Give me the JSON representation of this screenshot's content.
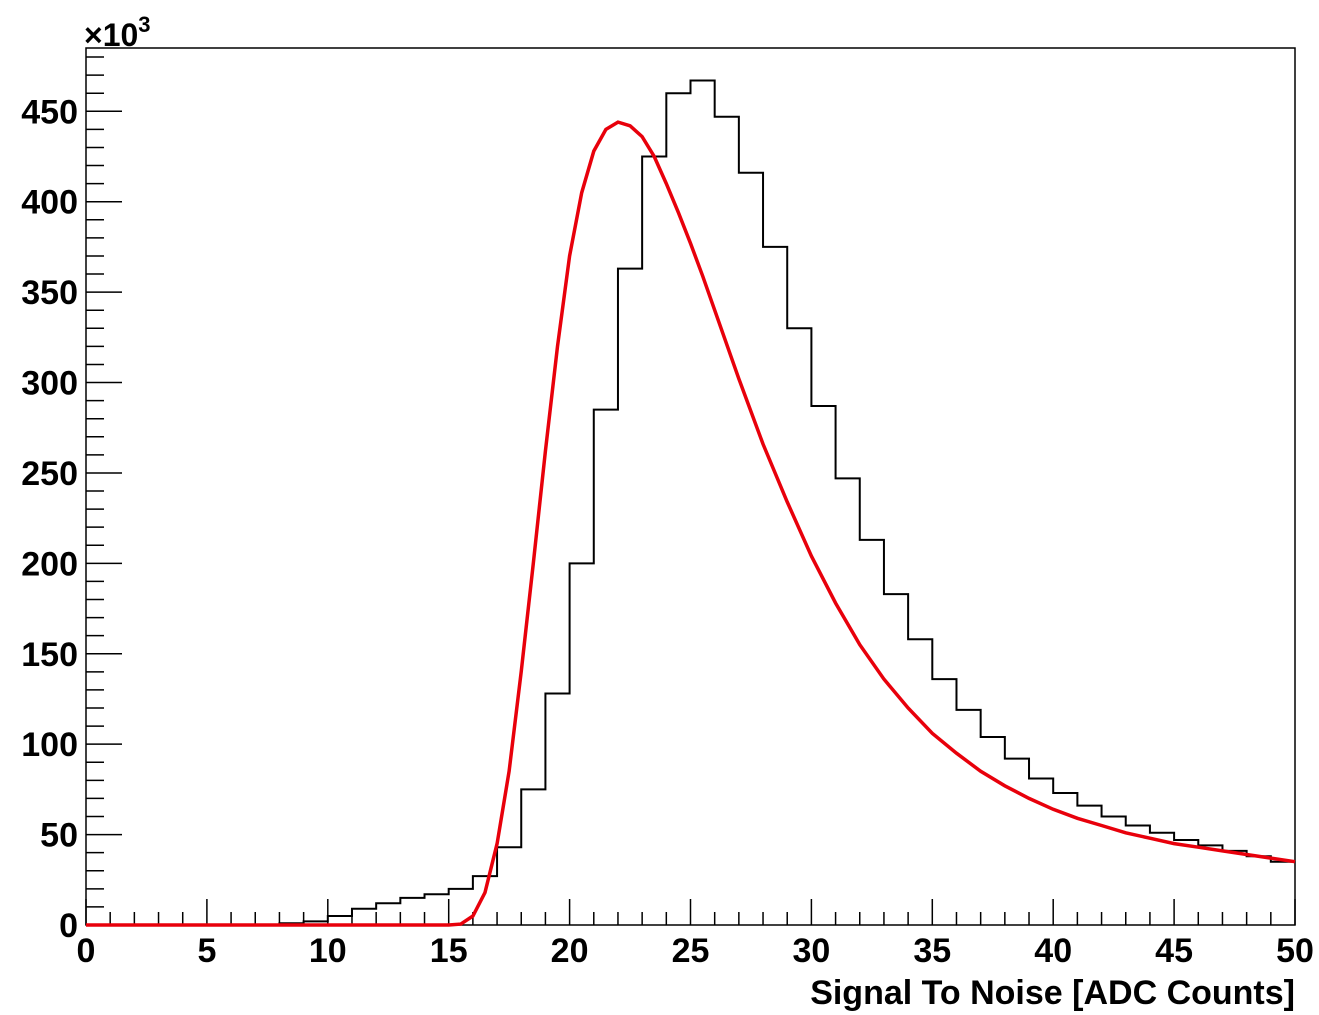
{
  "chart_data": {
    "type": "line",
    "xlabel": "Signal To Noise [ADC Counts]",
    "ylabel": "",
    "xlim": [
      0,
      50
    ],
    "ylim": [
      0,
      485
    ],
    "y_multiplier_label": {
      "prefix": "×10",
      "exponent": "3"
    },
    "x_ticks": [
      "0",
      "5",
      "10",
      "15",
      "20",
      "25",
      "30",
      "35",
      "40",
      "45",
      "50"
    ],
    "y_ticks": [
      "0",
      "50",
      "100",
      "150",
      "200",
      "250",
      "300",
      "350",
      "400",
      "450"
    ],
    "grid": false,
    "colors": {
      "histogram": "#000000",
      "fit": "#e8000b"
    },
    "series": [
      {
        "kind": "histogram",
        "bin_width": 1,
        "x": [
          0,
          1,
          2,
          3,
          4,
          5,
          6,
          7,
          8,
          9,
          10,
          11,
          12,
          13,
          14,
          15,
          16,
          17,
          18,
          19,
          20,
          21,
          22,
          23,
          24,
          25,
          26,
          27,
          28,
          29,
          30,
          31,
          32,
          33,
          34,
          35,
          36,
          37,
          38,
          39,
          40,
          41,
          42,
          43,
          44,
          45,
          46,
          47,
          48,
          49
        ],
        "values": [
          0,
          0,
          0,
          0,
          0,
          0,
          0,
          0,
          1,
          2,
          5,
          9,
          12,
          15,
          17,
          20,
          27,
          43,
          75,
          128,
          200,
          285,
          363,
          425,
          460,
          467,
          447,
          416,
          375,
          330,
          287,
          247,
          213,
          183,
          158,
          136,
          119,
          104,
          92,
          81,
          73,
          66,
          60,
          55,
          51,
          47,
          44,
          41,
          38,
          35
        ]
      },
      {
        "kind": "fit",
        "x": [
          0,
          15,
          15.5,
          16,
          16.5,
          17,
          17.5,
          18,
          18.5,
          19,
          19.5,
          20,
          20.5,
          21,
          21.5,
          22,
          22.5,
          23,
          23.5,
          24,
          24.5,
          25,
          25.5,
          26,
          27,
          28,
          29,
          30,
          31,
          32,
          33,
          34,
          35,
          36,
          37,
          38,
          39,
          40,
          41,
          42,
          43,
          44,
          45,
          46,
          47,
          48,
          49,
          50
        ],
        "values": [
          0,
          0,
          0.5,
          5,
          18,
          45,
          85,
          140,
          200,
          262,
          320,
          370,
          405,
          428,
          440,
          444,
          442,
          436,
          425,
          410,
          394,
          377,
          359,
          340,
          302,
          266,
          234,
          204,
          178,
          155,
          136,
          120,
          106,
          95,
          85,
          77,
          70,
          64,
          59,
          55,
          51,
          48,
          45,
          43,
          41,
          39,
          37,
          35
        ]
      }
    ]
  }
}
